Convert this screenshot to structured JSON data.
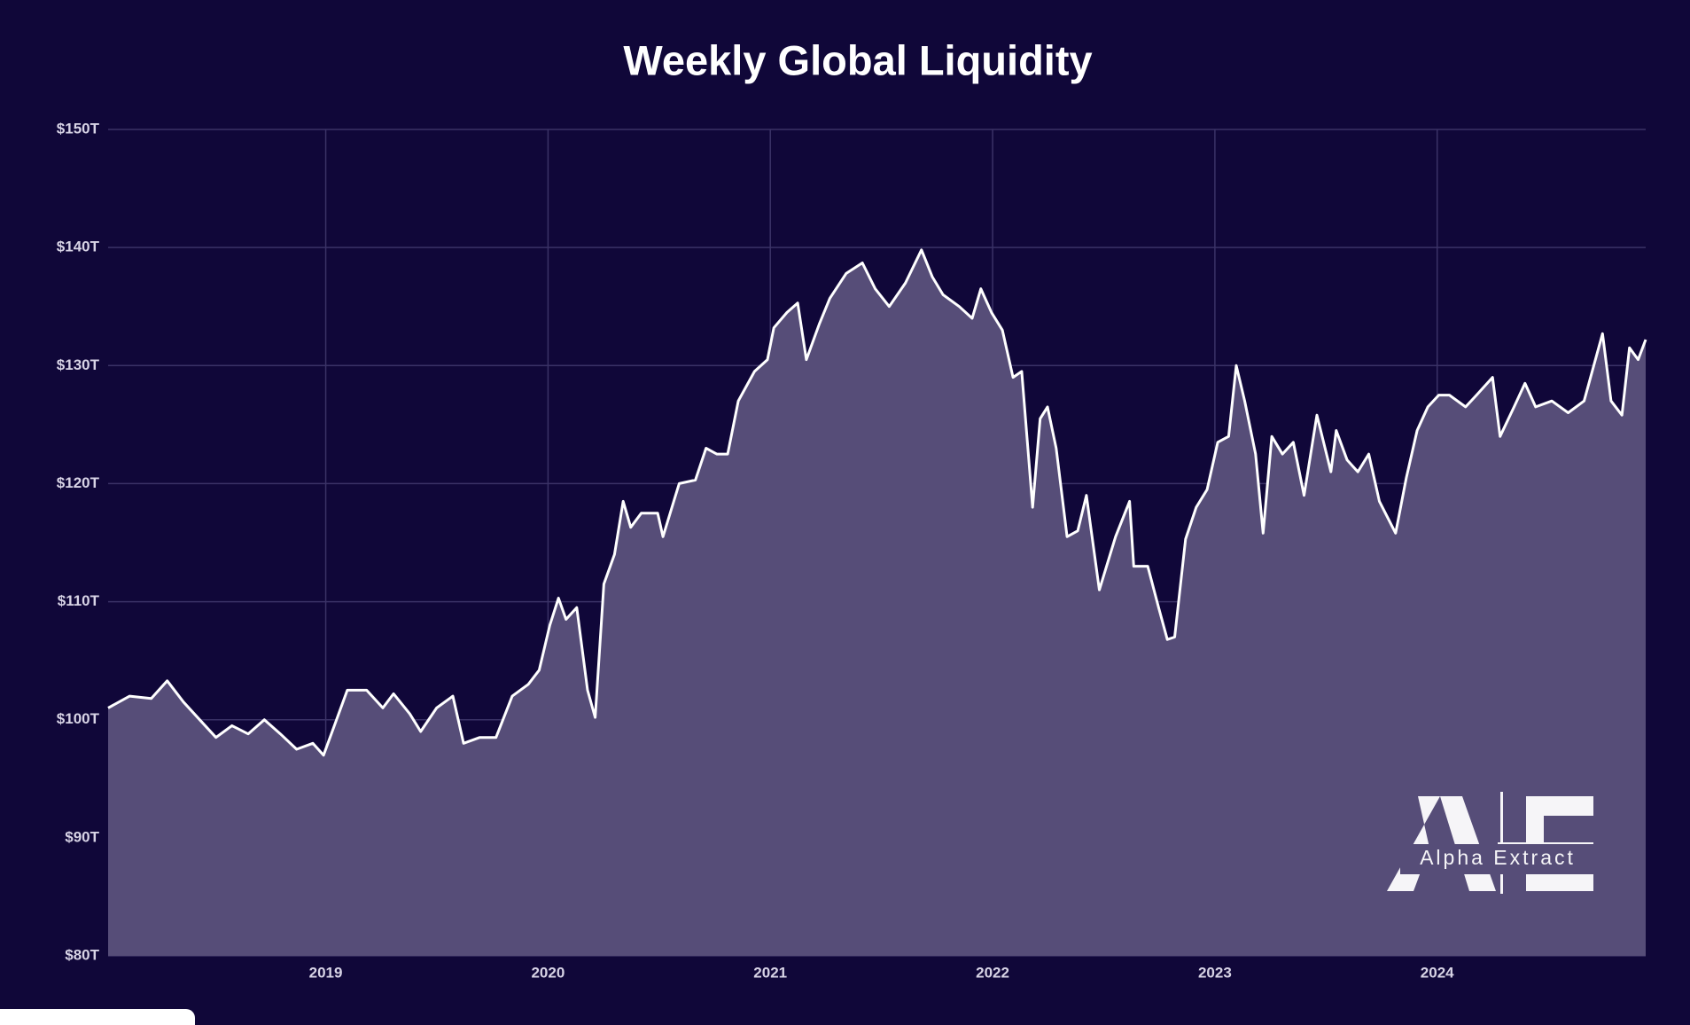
{
  "chart_data": {
    "type": "area",
    "title": "Weekly Global Liquidity",
    "watermark": "Alpha Extract",
    "x": [
      2018.021,
      2018.118,
      2018.215,
      2018.287,
      2018.36,
      2018.433,
      2018.506,
      2018.578,
      2018.651,
      2018.724,
      2018.796,
      2018.869,
      2018.942,
      2018.99,
      2019.039,
      2019.097,
      2019.184,
      2019.257,
      2019.305,
      2019.378,
      2019.427,
      2019.499,
      2019.572,
      2019.62,
      2019.693,
      2019.766,
      2019.839,
      2019.911,
      2019.96,
      2020.008,
      2020.047,
      2020.081,
      2020.129,
      2020.178,
      2020.212,
      2020.251,
      2020.299,
      2020.338,
      2020.372,
      2020.42,
      2020.493,
      2020.517,
      2020.59,
      2020.663,
      2020.711,
      2020.759,
      2020.808,
      2020.856,
      2020.929,
      2020.987,
      2021.016,
      2021.075,
      2021.123,
      2021.162,
      2021.22,
      2021.268,
      2021.341,
      2021.414,
      2021.472,
      2021.535,
      2021.608,
      2021.68,
      2021.729,
      2021.777,
      2021.85,
      2021.908,
      2021.947,
      2021.995,
      2022.044,
      2022.092,
      2022.131,
      2022.18,
      2022.214,
      2022.247,
      2022.286,
      2022.335,
      2022.383,
      2022.422,
      2022.48,
      2022.553,
      2022.616,
      2022.635,
      2022.698,
      2022.747,
      2022.786,
      2022.819,
      2022.868,
      2022.916,
      2022.965,
      2023.013,
      2023.062,
      2023.096,
      2023.134,
      2023.183,
      2023.217,
      2023.256,
      2023.304,
      2023.353,
      2023.401,
      2023.459,
      2023.522,
      2023.546,
      2023.595,
      2023.643,
      2023.692,
      2023.74,
      2023.813,
      2023.861,
      2023.91,
      2023.958,
      2024.007,
      2024.055,
      2024.128,
      2024.177,
      2024.249,
      2024.283,
      2024.346,
      2024.395,
      2024.443,
      2024.516,
      2024.589,
      2024.661,
      2024.744,
      2024.782,
      2024.831,
      2024.865,
      2024.904,
      2024.938
    ],
    "values": [
      101.0,
      102.0,
      101.8,
      103.3,
      101.5,
      100.0,
      98.5,
      99.5,
      98.8,
      100.0,
      98.8,
      97.5,
      98.0,
      97.0,
      99.5,
      102.5,
      102.5,
      101.0,
      102.2,
      100.5,
      99.0,
      101.0,
      102.0,
      98.0,
      98.5,
      98.5,
      102.0,
      103.0,
      104.2,
      108.0,
      110.3,
      108.5,
      109.5,
      102.5,
      100.2,
      111.5,
      114.0,
      118.5,
      116.3,
      117.5,
      117.5,
      115.5,
      120.0,
      120.3,
      123.0,
      122.5,
      122.5,
      127.0,
      129.5,
      130.5,
      133.2,
      134.5,
      135.3,
      130.5,
      133.5,
      135.7,
      137.8,
      138.7,
      136.5,
      135.0,
      137.0,
      139.8,
      137.5,
      136.0,
      135.0,
      134.0,
      136.5,
      134.5,
      133.0,
      129.0,
      129.5,
      118.0,
      125.5,
      126.5,
      123.0,
      115.5,
      116.0,
      119.0,
      111.0,
      115.5,
      118.5,
      113.0,
      113.0,
      109.5,
      106.8,
      107.0,
      115.3,
      118.0,
      119.5,
      123.5,
      124.0,
      130.0,
      127.0,
      122.5,
      115.8,
      124.0,
      122.5,
      123.5,
      119.0,
      125.8,
      121.0,
      124.5,
      122.0,
      121.0,
      122.5,
      118.5,
      115.8,
      120.5,
      124.5,
      126.5,
      127.5,
      127.5,
      126.5,
      127.5,
      129.0,
      124.0,
      126.5,
      128.5,
      126.5,
      127.0,
      126.0,
      127.0,
      132.7,
      127.0,
      125.8,
      131.5,
      130.5,
      132.2
    ],
    "color": "#ffffff",
    "fill": "#564d78",
    "xlim": [
      2018.021,
      2024.938
    ],
    "xticks": [
      2019,
      2020,
      2021,
      2022,
      2023,
      2024
    ],
    "ylim": [
      80,
      150
    ],
    "yticks": [
      {
        "value": 80,
        "label": "$80T"
      },
      {
        "value": 90,
        "label": "$90T"
      },
      {
        "value": 100,
        "label": "$100T"
      },
      {
        "value": 110,
        "label": "$110T"
      },
      {
        "value": 120,
        "label": "$120T"
      },
      {
        "value": 130,
        "label": "$130T"
      },
      {
        "value": 140,
        "label": "$140T"
      },
      {
        "value": 150,
        "label": "$150T"
      }
    ],
    "grid": true
  }
}
